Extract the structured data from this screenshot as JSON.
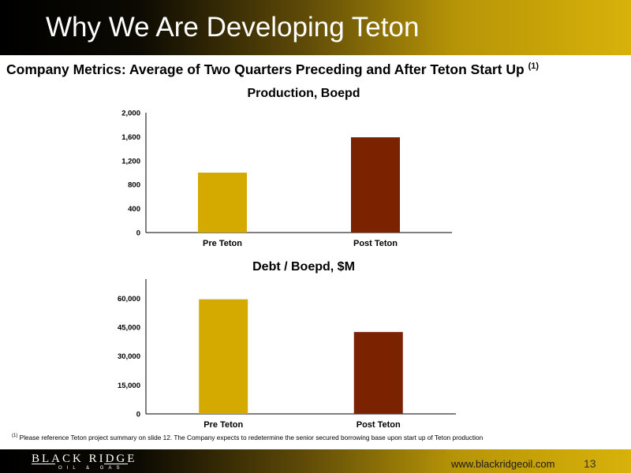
{
  "slide": {
    "title": "Why We Are Developing Teton",
    "subtitle": "Company Metrics: Average of Two Quarters Preceding and After Teton Start Up",
    "subtitle_note": "(1)",
    "footnote_mark": "(1)",
    "footnote": "Please reference Teton project summary on slide 12.  The Company expects to redetermine the senior secured borrowing base upon start up of Teton production",
    "logo_main": "BLACK RIDGE",
    "logo_sub": "OIL & GAS",
    "url": "www.blackridgeoil.com",
    "page_number": "13"
  },
  "chart_data": [
    {
      "type": "bar",
      "title": "Production, Boepd",
      "categories": [
        "Pre Teton",
        "Post Teton"
      ],
      "values": [
        1000,
        1590
      ],
      "colors": [
        "#d4aa00",
        "#7b2200"
      ],
      "ylim": [
        0,
        2000
      ],
      "yticks": [
        0,
        400,
        800,
        1200,
        1600,
        2000
      ],
      "ytick_labels": [
        "0",
        "400",
        "800",
        "1,200",
        "1,600",
        "2,000"
      ],
      "grid": false
    },
    {
      "type": "bar",
      "title": "Debt / Boepd, $M",
      "categories": [
        "Pre Teton",
        "Post Teton"
      ],
      "values": [
        59500,
        42500
      ],
      "colors": [
        "#d4aa00",
        "#7b2200"
      ],
      "ylim": [
        0,
        70000
      ],
      "yticks": [
        0,
        15000,
        30000,
        45000,
        60000
      ],
      "ytick_labels": [
        "0",
        "15,000",
        "30,000",
        "45,000",
        "60,000"
      ],
      "grid": false
    }
  ]
}
